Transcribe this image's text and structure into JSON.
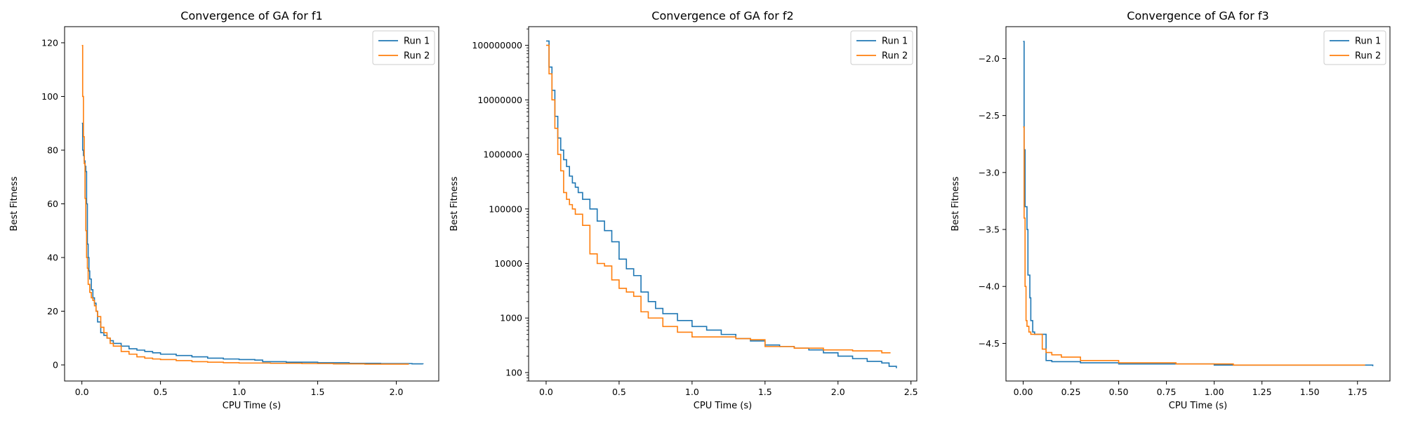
{
  "chart_data": [
    {
      "type": "line",
      "title": "Convergence of GA for f1",
      "xlabel": "CPU Time (s)",
      "ylabel": "Best Fitness",
      "xlim": [
        -0.11,
        2.27
      ],
      "ylim": [
        -6,
        126
      ],
      "xscale": "linear",
      "yscale": "linear",
      "xticks": [
        0.0,
        0.5,
        1.0,
        1.5,
        2.0
      ],
      "xtick_labels": [
        "0.0",
        "0.5",
        "1.0",
        "1.5",
        "2.0"
      ],
      "yticks": [
        0,
        20,
        40,
        60,
        80,
        100,
        120
      ],
      "ytick_labels": [
        "0",
        "20",
        "40",
        "60",
        "80",
        "100",
        "120"
      ],
      "legend": "top-right",
      "series": [
        {
          "name": "Run 1",
          "color": "#1f77b4",
          "x": [
            0.0,
            0.005,
            0.01,
            0.015,
            0.02,
            0.025,
            0.03,
            0.035,
            0.04,
            0.045,
            0.05,
            0.06,
            0.07,
            0.08,
            0.09,
            0.1,
            0.12,
            0.14,
            0.16,
            0.18,
            0.2,
            0.25,
            0.3,
            0.35,
            0.4,
            0.45,
            0.5,
            0.6,
            0.7,
            0.8,
            0.9,
            1.0,
            1.1,
            1.15,
            1.3,
            1.5,
            1.7,
            1.9,
            2.1,
            2.17
          ],
          "y": [
            90,
            80,
            78,
            76,
            74,
            72,
            60,
            45,
            40,
            35,
            32,
            28,
            25,
            23,
            20,
            16,
            12,
            11,
            10,
            9,
            8,
            7,
            6,
            5.5,
            5,
            4.5,
            4,
            3.5,
            3,
            2.5,
            2.2,
            2.0,
            1.8,
            1.2,
            1.0,
            0.8,
            0.6,
            0.5,
            0.4,
            0.3
          ]
        },
        {
          "name": "Run 2",
          "color": "#ff7f0e",
          "x": [
            0.0,
            0.005,
            0.01,
            0.015,
            0.02,
            0.025,
            0.03,
            0.035,
            0.04,
            0.05,
            0.06,
            0.07,
            0.08,
            0.09,
            0.1,
            0.12,
            0.14,
            0.16,
            0.18,
            0.2,
            0.25,
            0.3,
            0.35,
            0.4,
            0.45,
            0.5,
            0.6,
            0.7,
            0.8,
            0.9,
            1.0,
            1.2,
            1.4,
            1.6,
            1.8,
            2.0,
            2.08
          ],
          "y": [
            119,
            100,
            85,
            75,
            62,
            50,
            40,
            36,
            30,
            27,
            25,
            24,
            22,
            20,
            18,
            14,
            12,
            10,
            8,
            7,
            5,
            4,
            3,
            2.5,
            2.2,
            2.0,
            1.6,
            1.2,
            1.0,
            0.8,
            0.7,
            0.6,
            0.5,
            0.4,
            0.3,
            0.3,
            0.3
          ]
        }
      ]
    },
    {
      "type": "line",
      "title": "Convergence of GA for f2",
      "xlabel": "CPU Time (s)",
      "ylabel": "Best Fitness",
      "xlim": [
        -0.12,
        2.54
      ],
      "ylim": [
        70,
        220000000
      ],
      "xscale": "linear",
      "yscale": "log",
      "xticks": [
        0.0,
        0.5,
        1.0,
        1.5,
        2.0,
        2.5
      ],
      "xtick_labels": [
        "0.0",
        "0.5",
        "1.0",
        "1.5",
        "2.0",
        "2.5"
      ],
      "yticks": [
        100,
        1000,
        10000,
        100000,
        1000000,
        10000000,
        100000000
      ],
      "ytick_labels": [
        "100",
        "1000",
        "10000",
        "100000",
        "1000000",
        "10000000",
        "100000000"
      ],
      "legend": "top-right",
      "series": [
        {
          "name": "Run 1",
          "color": "#1f77b4",
          "x": [
            0.0,
            0.02,
            0.04,
            0.06,
            0.08,
            0.1,
            0.12,
            0.14,
            0.16,
            0.18,
            0.2,
            0.22,
            0.25,
            0.3,
            0.35,
            0.4,
            0.45,
            0.5,
            0.55,
            0.6,
            0.65,
            0.7,
            0.75,
            0.8,
            0.9,
            1.0,
            1.1,
            1.2,
            1.3,
            1.4,
            1.5,
            1.6,
            1.7,
            1.8,
            1.9,
            2.0,
            2.1,
            2.2,
            2.3,
            2.35,
            2.4
          ],
          "y": [
            120000000,
            40000000,
            15000000,
            5000000,
            2000000,
            1200000,
            800000,
            600000,
            400000,
            300000,
            250000,
            200000,
            150000,
            100000,
            60000,
            40000,
            25000,
            12000,
            8000,
            6000,
            3000,
            2000,
            1500,
            1200,
            900,
            700,
            600,
            500,
            420,
            380,
            320,
            300,
            280,
            260,
            230,
            200,
            180,
            160,
            150,
            130,
            120
          ]
        },
        {
          "name": "Run 2",
          "color": "#ff7f0e",
          "x": [
            0.0,
            0.02,
            0.04,
            0.06,
            0.08,
            0.1,
            0.12,
            0.14,
            0.16,
            0.18,
            0.2,
            0.25,
            0.3,
            0.35,
            0.4,
            0.45,
            0.5,
            0.55,
            0.6,
            0.65,
            0.7,
            0.8,
            0.9,
            1.0,
            1.1,
            1.2,
            1.3,
            1.4,
            1.5,
            1.7,
            1.9,
            2.1,
            2.3,
            2.36
          ],
          "y": [
            100000000,
            30000000,
            10000000,
            3000000,
            1000000,
            500000,
            200000,
            150000,
            120000,
            100000,
            80000,
            50000,
            15000,
            10000,
            9000,
            5000,
            3500,
            3000,
            2500,
            1300,
            1000,
            700,
            550,
            450,
            450,
            450,
            420,
            400,
            300,
            280,
            260,
            250,
            230,
            230
          ]
        }
      ]
    },
    {
      "type": "line",
      "title": "Convergence of GA for f3",
      "xlabel": "CPU Time (s)",
      "ylabel": "Best Fitness",
      "xlim": [
        -0.09,
        1.92
      ],
      "ylim": [
        -4.83,
        -1.72
      ],
      "xscale": "linear",
      "yscale": "linear",
      "xticks": [
        0.0,
        0.25,
        0.5,
        0.75,
        1.0,
        1.25,
        1.5,
        1.75
      ],
      "xtick_labels": [
        "0.00",
        "0.25",
        "0.50",
        "0.75",
        "1.00",
        "1.25",
        "1.50",
        "1.75"
      ],
      "yticks": [
        -4.5,
        -4.0,
        -3.5,
        -3.0,
        -2.5,
        -2.0
      ],
      "ytick_labels": [
        "−4.5",
        "−4.0",
        "−3.5",
        "−3.0",
        "−2.5",
        "−2.0"
      ],
      "legend": "top-right",
      "series": [
        {
          "name": "Run 1",
          "color": "#1f77b4",
          "x": [
            0.0,
            0.005,
            0.01,
            0.015,
            0.02,
            0.025,
            0.03,
            0.035,
            0.04,
            0.05,
            0.06,
            0.08,
            0.1,
            0.11,
            0.12,
            0.15,
            0.2,
            0.3,
            0.5,
            0.8,
            1.0,
            1.2,
            1.5,
            1.83
          ],
          "y": [
            -1.85,
            -2.8,
            -3.3,
            -3.3,
            -3.5,
            -3.9,
            -3.9,
            -4.1,
            -4.3,
            -4.4,
            -4.42,
            -4.42,
            -4.42,
            -4.42,
            -4.65,
            -4.66,
            -4.66,
            -4.67,
            -4.68,
            -4.68,
            -4.69,
            -4.69,
            -4.69,
            -4.7
          ]
        },
        {
          "name": "Run 2",
          "color": "#ff7f0e",
          "x": [
            0.0,
            0.005,
            0.01,
            0.015,
            0.02,
            0.03,
            0.04,
            0.06,
            0.08,
            0.1,
            0.12,
            0.15,
            0.2,
            0.3,
            0.5,
            0.8,
            1.0,
            1.1,
            1.3,
            1.5,
            1.79
          ],
          "y": [
            -2.6,
            -3.4,
            -4.0,
            -4.3,
            -4.35,
            -4.4,
            -4.42,
            -4.42,
            -4.42,
            -4.55,
            -4.58,
            -4.6,
            -4.62,
            -4.65,
            -4.67,
            -4.68,
            -4.68,
            -4.69,
            -4.69,
            -4.69,
            -4.69
          ]
        }
      ]
    }
  ]
}
